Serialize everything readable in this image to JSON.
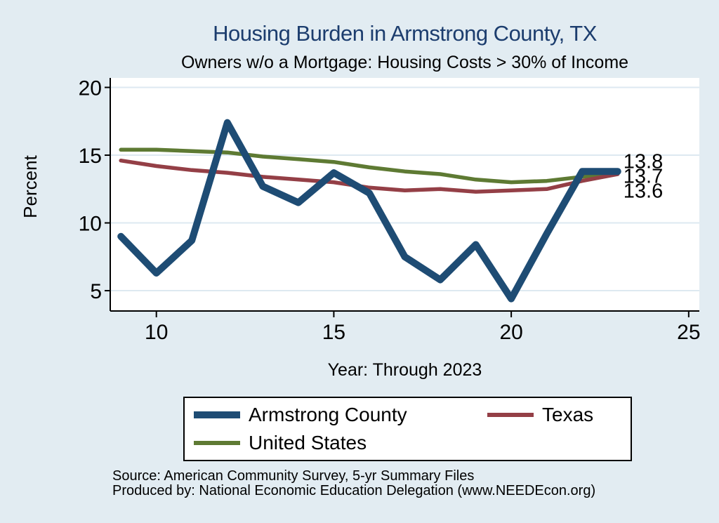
{
  "page": {
    "background": "#e2ecf2"
  },
  "chart_data": {
    "type": "line",
    "title": "Housing Burden in Armstrong County, TX",
    "subtitle": "Owners w/o a Mortgage: Housing Costs > 30% of Income",
    "xlabel": "Year: Through 2023",
    "ylabel": "Percent",
    "title_color": "#1c3d6e",
    "grid": "horizontal",
    "grid_color": "#dde9f1",
    "axis_color": "#000000",
    "plot_background": "#ffffff",
    "x_note": "x values are survey years 2009-2023 shown as 2-digit years",
    "x": [
      9,
      10,
      11,
      12,
      13,
      14,
      15,
      16,
      17,
      18,
      19,
      20,
      21,
      22,
      23
    ],
    "x_ticks": [
      10,
      15,
      20,
      25
    ],
    "y_ticks": [
      5,
      10,
      15,
      20
    ],
    "xlim": [
      8.7,
      25.3
    ],
    "ylim": [
      3.5,
      20.7
    ],
    "series": [
      {
        "name": "Armstrong County",
        "color": "#1e4c74",
        "width": 10,
        "values": [
          9.0,
          6.3,
          8.7,
          17.4,
          12.7,
          11.5,
          13.7,
          12.2,
          7.5,
          5.8,
          8.4,
          4.4,
          9.2,
          13.8,
          13.8
        ]
      },
      {
        "name": "Texas",
        "color": "#943f46",
        "width": 5.5,
        "values": [
          14.6,
          14.2,
          13.9,
          13.7,
          13.4,
          13.2,
          13.0,
          12.6,
          12.4,
          12.5,
          12.3,
          12.4,
          12.5,
          13.1,
          13.6
        ]
      },
      {
        "name": "United States",
        "color": "#5e7a33",
        "width": 5.5,
        "values": [
          15.4,
          15.4,
          15.3,
          15.2,
          14.9,
          14.7,
          14.5,
          14.1,
          13.8,
          13.6,
          13.2,
          13.0,
          13.1,
          13.4,
          13.7
        ]
      }
    ],
    "end_labels": [
      {
        "text": "13.8",
        "series": "Armstrong County"
      },
      {
        "text": "13.7",
        "series": "United States"
      },
      {
        "text": "13.6",
        "series": "Texas"
      }
    ],
    "legend_position": "bottom"
  },
  "footer": {
    "source_line": "Source: American Community Survey, 5-yr Summary Files",
    "produced_line": "Produced by: National Economic Education Delegation (www.NEEDEcon.org)"
  }
}
